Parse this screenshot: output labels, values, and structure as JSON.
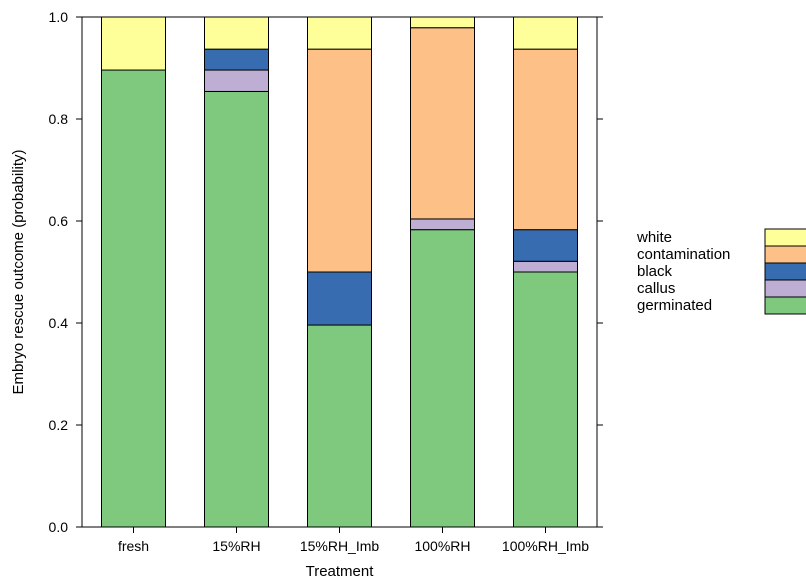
{
  "chart_data": {
    "type": "bar",
    "stacked": true,
    "xlabel": "Treatment",
    "ylabel": "Embryo rescue outcome (probability)",
    "ylim": [
      0,
      1
    ],
    "yticks": [
      "0.0",
      "0.2",
      "0.4",
      "0.6",
      "0.8",
      "1.0"
    ],
    "ytick_values": [
      0,
      0.2,
      0.4,
      0.6,
      0.8,
      1.0
    ],
    "categories": [
      "fresh",
      "15%RH",
      "15%RH_Imb",
      "100%RH",
      "100%RH_Imb"
    ],
    "series": [
      {
        "name": "germinated",
        "color": "#7fc97f",
        "values": [
          0.896,
          0.854,
          0.396,
          0.583,
          0.5
        ]
      },
      {
        "name": "callus",
        "color": "#beaed4",
        "values": [
          0.0,
          0.042,
          0.0,
          0.021,
          0.021
        ]
      },
      {
        "name": "black",
        "color": "#386cb0",
        "values": [
          0.0,
          0.041,
          0.104,
          0.0,
          0.062
        ]
      },
      {
        "name": "contamination",
        "color": "#fdc086",
        "values": [
          0.0,
          0.0,
          0.437,
          0.375,
          0.354
        ]
      },
      {
        "name": "white",
        "color": "#ffff99",
        "values": [
          0.104,
          0.063,
          0.063,
          0.021,
          0.063
        ]
      }
    ],
    "legend_order": [
      "white",
      "contamination",
      "black",
      "callus",
      "germinated"
    ],
    "legend_position": "right",
    "grid": false
  }
}
